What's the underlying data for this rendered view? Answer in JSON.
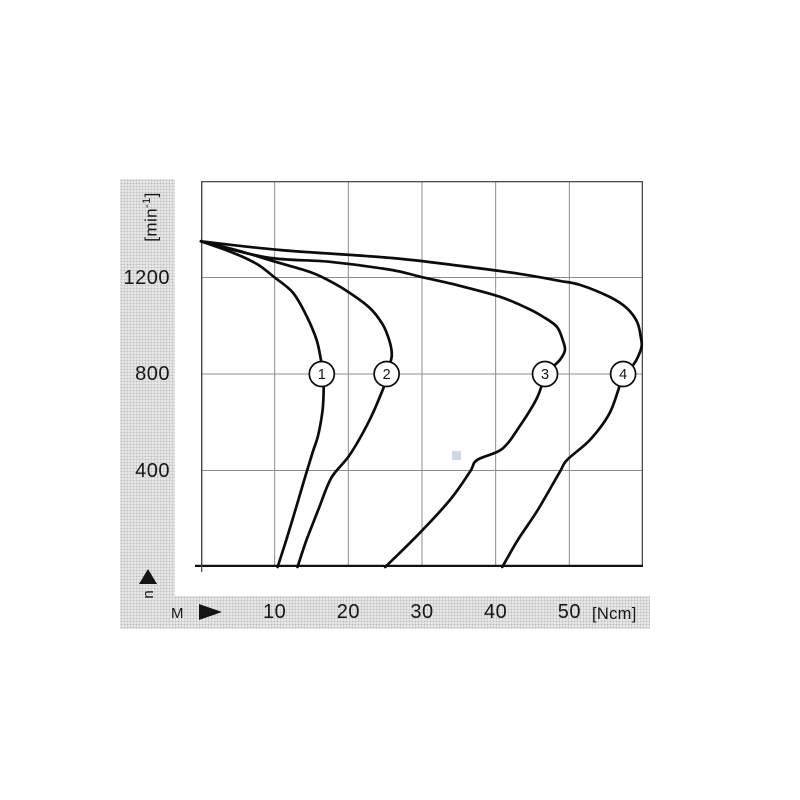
{
  "page": {
    "background": "#ffffff"
  },
  "axes": {
    "y": {
      "symbol": "n",
      "unit_pre": "[min",
      "unit_sup": "-1",
      "unit_post": "]",
      "ticks": [
        400,
        800,
        1200
      ]
    },
    "x": {
      "symbol": "M",
      "unit": "[Ncm]",
      "ticks": [
        10,
        20,
        30,
        40,
        50
      ]
    }
  },
  "chart_data": {
    "type": "line",
    "title": "",
    "xlabel": "M [Ncm]",
    "ylabel": "n [min-1]",
    "xlim": [
      0,
      60
    ],
    "ylim": [
      0,
      1600
    ],
    "grid": true,
    "legend_position": "none",
    "x_gridlines": [
      10,
      20,
      30,
      40,
      50
    ],
    "y_gridlines": [
      400,
      800,
      1200
    ],
    "no_load_speed": 1350,
    "series": [
      {
        "name": "1",
        "label": "1",
        "marker_at": {
          "m": 16.4,
          "n": 800
        },
        "points": [
          [
            0,
            1350
          ],
          [
            3,
            1318
          ],
          [
            6,
            1281
          ],
          [
            8,
            1248
          ],
          [
            10,
            1200
          ],
          [
            12.5,
            1136
          ],
          [
            14.4,
            1036
          ],
          [
            15.7,
            940
          ],
          [
            16.3,
            855
          ],
          [
            16.55,
            800
          ],
          [
            16.65,
            740
          ],
          [
            16.5,
            650
          ],
          [
            15.9,
            545
          ],
          [
            15.2,
            480
          ],
          [
            14.1,
            370
          ],
          [
            12.9,
            245
          ],
          [
            11.6,
            115
          ],
          [
            10.4,
            0
          ]
        ]
      },
      {
        "name": "2",
        "label": "2",
        "marker_at": {
          "m": 25.2,
          "n": 800
        },
        "points": [
          [
            0,
            1350
          ],
          [
            5,
            1312
          ],
          [
            10,
            1266
          ],
          [
            14.8,
            1223
          ],
          [
            17.5,
            1185
          ],
          [
            20,
            1140
          ],
          [
            22.9,
            1074
          ],
          [
            24.7,
            1003
          ],
          [
            25.6,
            935
          ],
          [
            25.9,
            880
          ],
          [
            25.6,
            835
          ],
          [
            25.3,
            800
          ],
          [
            24.8,
            745
          ],
          [
            22.9,
            610
          ],
          [
            20.2,
            465
          ],
          [
            17.7,
            370
          ],
          [
            15.9,
            235
          ],
          [
            14.3,
            110
          ],
          [
            13.1,
            0
          ]
        ]
      },
      {
        "name": "3",
        "label": "3",
        "marker_at": {
          "m": 46.7,
          "n": 800
        },
        "points": [
          [
            0,
            1350
          ],
          [
            9,
            1283
          ],
          [
            17.5,
            1265
          ],
          [
            25.9,
            1231
          ],
          [
            29.8,
            1203
          ],
          [
            35.2,
            1165
          ],
          [
            40.6,
            1120
          ],
          [
            44.2,
            1074
          ],
          [
            46.4,
            1038
          ],
          [
            48.3,
            996
          ],
          [
            49.1,
            941
          ],
          [
            49.4,
            898
          ],
          [
            48.7,
            858
          ],
          [
            47.6,
            825
          ],
          [
            46.7,
            792
          ],
          [
            45.6,
            700
          ],
          [
            43.4,
            590
          ],
          [
            40.9,
            490
          ],
          [
            37.5,
            444
          ],
          [
            36.5,
            394
          ],
          [
            33.8,
            278
          ],
          [
            29.5,
            135
          ],
          [
            25,
            0
          ]
        ]
      },
      {
        "name": "4",
        "label": "4",
        "marker_at": {
          "m": 57.3,
          "n": 800
        },
        "points": [
          [
            0,
            1350
          ],
          [
            10.7,
            1314
          ],
          [
            25.9,
            1281
          ],
          [
            35.2,
            1248
          ],
          [
            43.3,
            1215
          ],
          [
            48.7,
            1186
          ],
          [
            51.5,
            1169
          ],
          [
            55.5,
            1119
          ],
          [
            57.8,
            1073
          ],
          [
            59.2,
            1016
          ],
          [
            59.7,
            953
          ],
          [
            59.8,
            912
          ],
          [
            59.1,
            858
          ],
          [
            58.2,
            820
          ],
          [
            57.3,
            792
          ],
          [
            55.5,
            640
          ],
          [
            52.8,
            527
          ],
          [
            49.7,
            444
          ],
          [
            48.7,
            394
          ],
          [
            45.7,
            236
          ],
          [
            43,
            112
          ],
          [
            40.9,
            0
          ]
        ]
      }
    ]
  },
  "colors": {
    "band_bg": "#ebebeb",
    "band_dot": "#c0c0c0",
    "grid": "#8c8c8c",
    "border": "#4a4a4a",
    "curve": "#0c0c0c",
    "text": "#161616",
    "axis": "#111111",
    "artifact": "#c7cfe0"
  }
}
